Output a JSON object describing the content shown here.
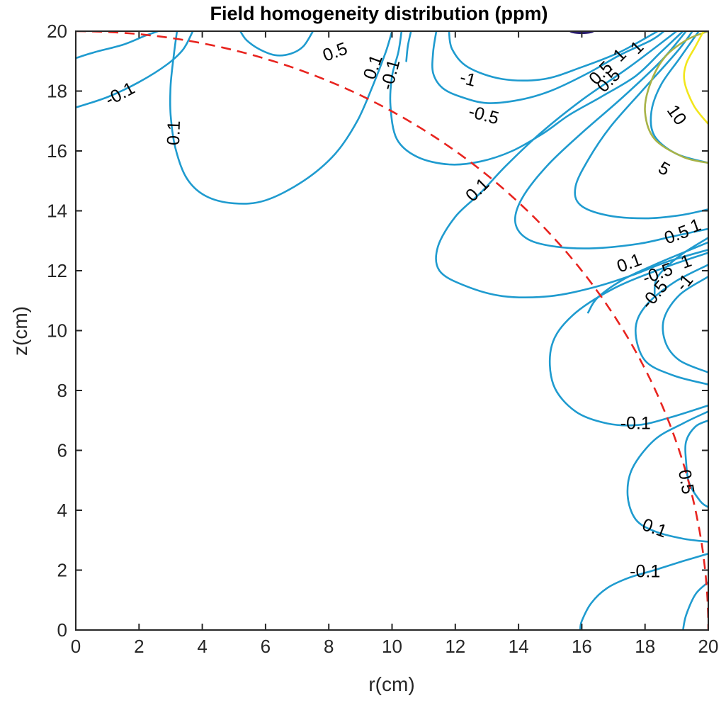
{
  "chart_data": {
    "type": "contour",
    "title": "Field homogeneity distribution (ppm)",
    "xlabel": "r(cm)",
    "ylabel": "z(cm)",
    "xlim": [
      0,
      20
    ],
    "ylim": [
      0,
      20
    ],
    "xticks": [
      "0",
      "2",
      "4",
      "6",
      "8",
      "10",
      "12",
      "14",
      "16",
      "18",
      "20"
    ],
    "yticks": [
      "0",
      "2",
      "4",
      "6",
      "8",
      "10",
      "12",
      "14",
      "16",
      "18",
      "20"
    ],
    "grid": false,
    "colors": {
      "level_small": "#1f9bcf",
      "level_5": "#a8b347",
      "level_10": "#f2e61c",
      "level_top": "#2a1d6e",
      "boundary": "#e8241f"
    },
    "boundary_arc": {
      "style": "dashed",
      "color": "#e8241f",
      "radius": 20
    },
    "contours": [
      {
        "level": "-0.1",
        "points": [
          [
            0,
            19.1
          ],
          [
            0.6,
            19.3
          ],
          [
            1.5,
            19.55
          ],
          [
            2.2,
            19.85
          ],
          [
            2.6,
            20
          ]
        ]
      },
      {
        "level": "-0.1",
        "points": [
          [
            0,
            17.45
          ],
          [
            1.0,
            17.8
          ],
          [
            2.0,
            18.3
          ],
          [
            2.9,
            18.9
          ],
          [
            3.4,
            19.4
          ],
          [
            3.7,
            20
          ]
        ]
      },
      {
        "level": "0.1",
        "points": [
          [
            3.2,
            20
          ],
          [
            3.1,
            19.2
          ],
          [
            3.0,
            18.2
          ],
          [
            3.0,
            17.2
          ],
          [
            3.15,
            16.1
          ],
          [
            3.5,
            15.1
          ],
          [
            4.1,
            14.5
          ],
          [
            5.0,
            14.25
          ],
          [
            6.0,
            14.35
          ],
          [
            7.2,
            15.0
          ],
          [
            8.2,
            15.9
          ],
          [
            8.9,
            17.0
          ],
          [
            9.4,
            18.2
          ],
          [
            9.8,
            19.3
          ],
          [
            10.0,
            20
          ]
        ]
      },
      {
        "level": "0.5",
        "points": [
          [
            5.2,
            20
          ],
          [
            5.4,
            19.7
          ],
          [
            5.8,
            19.4
          ],
          [
            6.3,
            19.2
          ],
          [
            6.8,
            19.25
          ],
          [
            7.2,
            19.5
          ],
          [
            7.5,
            20
          ]
        ]
      },
      {
        "level": "-0.1",
        "points": [
          [
            10.3,
            20
          ],
          [
            10.2,
            19.3
          ],
          [
            10.0,
            18.5
          ],
          [
            9.95,
            17.5
          ],
          [
            10.15,
            16.4
          ],
          [
            10.8,
            15.8
          ],
          [
            11.8,
            15.55
          ],
          [
            12.8,
            15.65
          ],
          [
            13.8,
            16.0
          ],
          [
            14.8,
            16.6
          ],
          [
            15.6,
            17.2
          ],
          [
            16.6,
            17.8
          ],
          [
            17.7,
            18.5
          ],
          [
            18.5,
            19.3
          ],
          [
            19.2,
            20
          ]
        ]
      },
      {
        "level": "-0.5",
        "points": [
          [
            11.4,
            20
          ],
          [
            11.3,
            19.3
          ],
          [
            11.3,
            18.6
          ],
          [
            11.6,
            18.1
          ],
          [
            12.2,
            17.8
          ],
          [
            13.0,
            17.6
          ],
          [
            14.0,
            17.7
          ],
          [
            15.0,
            18.0
          ],
          [
            16.2,
            18.6
          ],
          [
            17.2,
            19.2
          ],
          [
            18.2,
            19.7
          ],
          [
            18.6,
            20
          ]
        ]
      },
      {
        "level": "-1",
        "points": [
          [
            11.8,
            20
          ],
          [
            11.9,
            19.4
          ],
          [
            12.4,
            18.8
          ],
          [
            13.5,
            18.4
          ],
          [
            14.8,
            18.4
          ],
          [
            16.0,
            18.8
          ],
          [
            17.2,
            19.3
          ],
          [
            18.4,
            20
          ]
        ]
      },
      {
        "level": "0.5",
        "points": [
          [
            10.6,
            20
          ],
          [
            10.5,
            19.5
          ],
          [
            10.45,
            19.0
          ]
        ]
      },
      {
        "level": "0.1",
        "points": [
          [
            19.0,
            20
          ],
          [
            17.5,
            18.8
          ],
          [
            16.0,
            17.7
          ],
          [
            14.7,
            16.6
          ],
          [
            13.6,
            15.5
          ],
          [
            12.8,
            14.6
          ],
          [
            12.0,
            13.8
          ],
          [
            11.45,
            12.8
          ],
          [
            11.5,
            12.0
          ],
          [
            12.3,
            11.5
          ],
          [
            13.5,
            11.15
          ],
          [
            15.0,
            11.15
          ],
          [
            16.4,
            11.45
          ],
          [
            17.6,
            11.85
          ],
          [
            18.7,
            12.3
          ],
          [
            20,
            12.7
          ]
        ]
      },
      {
        "level": "0.5",
        "points": [
          [
            19.3,
            20
          ],
          [
            18.5,
            19.0
          ],
          [
            17.3,
            17.8
          ],
          [
            16.0,
            16.6
          ],
          [
            14.9,
            15.5
          ],
          [
            14.1,
            14.4
          ],
          [
            13.9,
            13.6
          ],
          [
            14.3,
            13.05
          ],
          [
            15.2,
            12.8
          ],
          [
            16.4,
            12.75
          ],
          [
            17.8,
            12.9
          ],
          [
            18.9,
            13.15
          ],
          [
            20,
            13.4
          ]
        ]
      },
      {
        "level": "1",
        "points": [
          [
            19.5,
            20
          ],
          [
            19.0,
            19.3
          ],
          [
            17.9,
            18.0
          ],
          [
            16.9,
            16.8
          ],
          [
            16.2,
            15.7
          ],
          [
            15.8,
            14.8
          ],
          [
            15.95,
            14.2
          ],
          [
            16.8,
            13.85
          ],
          [
            18.0,
            13.75
          ],
          [
            19.1,
            13.85
          ],
          [
            20,
            14.05
          ]
        ]
      },
      {
        "level": "1",
        "points": [
          [
            19.7,
            20
          ],
          [
            19.1,
            19.1
          ],
          [
            18.5,
            18.2
          ],
          [
            18.2,
            17.3
          ],
          [
            18.3,
            16.5
          ],
          [
            19.0,
            15.9
          ],
          [
            20,
            15.6
          ]
        ]
      },
      {
        "level": "5",
        "points": [
          [
            20,
            20
          ],
          [
            19.3,
            19.7
          ],
          [
            18.6,
            19.1
          ],
          [
            18.15,
            18.2
          ],
          [
            18.0,
            17.3
          ],
          [
            18.3,
            16.4
          ],
          [
            19.2,
            15.8
          ],
          [
            20,
            15.6
          ]
        ]
      },
      {
        "level": "10",
        "points": [
          [
            19.85,
            20
          ],
          [
            19.6,
            19.5
          ],
          [
            19.3,
            18.9
          ],
          [
            19.25,
            18.3
          ],
          [
            19.55,
            17.5
          ],
          [
            20,
            16.9
          ]
        ]
      },
      {
        "level": "-0.5",
        "points": [
          [
            20,
            12.95
          ],
          [
            19.2,
            12.6
          ],
          [
            18.3,
            12.2
          ],
          [
            17.3,
            11.7
          ],
          [
            16.5,
            11.1
          ],
          [
            16.2,
            10.6
          ]
        ]
      },
      {
        "level": "-1",
        "points": [
          [
            20,
            13.1
          ],
          [
            19.1,
            12.5
          ],
          [
            18.4,
            11.8
          ],
          [
            18.3,
            11.2
          ]
        ]
      },
      {
        "level": "-1",
        "points": [
          [
            20,
            11.8
          ],
          [
            19.1,
            11.2
          ],
          [
            18.6,
            10.4
          ],
          [
            18.65,
            9.6
          ],
          [
            19.1,
            9.0
          ],
          [
            20,
            8.6
          ]
        ]
      },
      {
        "level": "-0.5",
        "points": [
          [
            20,
            12.2
          ],
          [
            18.9,
            11.6
          ],
          [
            18.0,
            10.8
          ],
          [
            17.7,
            10.0
          ],
          [
            18.0,
            9.0
          ],
          [
            18.9,
            8.5
          ],
          [
            20,
            8.2
          ]
        ]
      },
      {
        "level": "-0.1",
        "points": [
          [
            20,
            12.6
          ],
          [
            18.6,
            12.1
          ],
          [
            17.0,
            11.4
          ],
          [
            15.7,
            10.5
          ],
          [
            15.05,
            9.5
          ],
          [
            15.1,
            8.2
          ],
          [
            15.8,
            7.3
          ],
          [
            16.8,
            6.9
          ],
          [
            17.8,
            6.85
          ],
          [
            18.8,
            7.1
          ],
          [
            20,
            7.5
          ]
        ]
      },
      {
        "level": "0.5",
        "points": [
          [
            20,
            7.0
          ],
          [
            19.6,
            6.8
          ],
          [
            19.3,
            6.3
          ],
          [
            19.3,
            5.6
          ],
          [
            19.4,
            4.9
          ],
          [
            19.75,
            4.3
          ],
          [
            20,
            4.1
          ]
        ]
      },
      {
        "level": "0.1",
        "points": [
          [
            20,
            7.3
          ],
          [
            19.2,
            6.9
          ],
          [
            18.3,
            6.35
          ],
          [
            17.6,
            5.4
          ],
          [
            17.45,
            4.5
          ],
          [
            17.7,
            3.7
          ],
          [
            18.3,
            3.3
          ],
          [
            19.2,
            3.05
          ],
          [
            20,
            2.95
          ]
        ]
      },
      {
        "level": "-0.1",
        "points": [
          [
            20,
            2.55
          ],
          [
            19.2,
            2.3
          ],
          [
            18.3,
            2.0
          ],
          [
            17.5,
            1.75
          ],
          [
            16.8,
            1.4
          ],
          [
            16.3,
            0.9
          ],
          [
            16.0,
            0.3
          ],
          [
            15.95,
            0
          ]
        ]
      },
      {
        "level": "-0.1",
        "points": [
          [
            20,
            1.6
          ],
          [
            19.6,
            1.2
          ],
          [
            19.3,
            0.5
          ],
          [
            19.2,
            0
          ]
        ]
      }
    ],
    "contour_labels": [
      {
        "text": "-0.1",
        "x": 1.4,
        "y": 17.9,
        "angle": -28
      },
      {
        "text": "0.1",
        "x": 3.1,
        "y": 16.6,
        "angle": -88
      },
      {
        "text": "0.5",
        "x": 8.2,
        "y": 19.3,
        "angle": -20
      },
      {
        "text": "0.1",
        "x": 9.4,
        "y": 18.8,
        "angle": -70
      },
      {
        "text": "-0.1",
        "x": 9.95,
        "y": 18.55,
        "angle": -75
      },
      {
        "text": "-1",
        "x": 12.4,
        "y": 18.4,
        "angle": 15
      },
      {
        "text": "-0.5",
        "x": 12.9,
        "y": 17.2,
        "angle": 15
      },
      {
        "text": "0.5",
        "x": 16.6,
        "y": 18.6,
        "angle": -45
      },
      {
        "text": "0.5",
        "x": 16.85,
        "y": 18.35,
        "angle": -45
      },
      {
        "text": "1",
        "x": 17.2,
        "y": 19.2,
        "angle": -45
      },
      {
        "text": "1",
        "x": 17.75,
        "y": 19.45,
        "angle": -45
      },
      {
        "text": "10",
        "x": 19.0,
        "y": 17.2,
        "angle": 55
      },
      {
        "text": "5",
        "x": 18.6,
        "y": 15.4,
        "angle": 30
      },
      {
        "text": "0.1",
        "x": 12.7,
        "y": 14.7,
        "angle": -45
      },
      {
        "text": "0.5",
        "x": 19.0,
        "y": 13.2,
        "angle": -20
      },
      {
        "text": "1",
        "x": 19.6,
        "y": 13.5,
        "angle": -20
      },
      {
        "text": "0.1",
        "x": 17.5,
        "y": 12.25,
        "angle": -20
      },
      {
        "text": "-0.5",
        "x": 18.4,
        "y": 11.9,
        "angle": -20
      },
      {
        "text": "1",
        "x": 19.3,
        "y": 12.3,
        "angle": -20
      },
      {
        "text": "-0.5",
        "x": 18.3,
        "y": 11.2,
        "angle": -50
      },
      {
        "text": "-1",
        "x": 19.25,
        "y": 11.6,
        "angle": -50
      },
      {
        "text": "-0.1",
        "x": 17.7,
        "y": 6.9,
        "angle": 0
      },
      {
        "text": "0.5",
        "x": 19.3,
        "y": 4.95,
        "angle": 80
      },
      {
        "text": "0.1",
        "x": 18.3,
        "y": 3.4,
        "angle": 20
      },
      {
        "text": "-0.1",
        "x": 18.0,
        "y": 1.95,
        "angle": 0
      }
    ]
  }
}
